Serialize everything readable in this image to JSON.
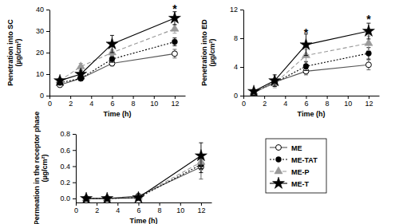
{
  "chart_data": [
    {
      "type": "line",
      "xlabel": "Time (h)",
      "ylabel": "Penetration into SC\n(µg/cm²)",
      "xlim": [
        0,
        13
      ],
      "xticks": [
        0,
        2,
        4,
        6,
        8,
        10,
        12
      ],
      "ylim": [
        0,
        40
      ],
      "yticks": [
        0,
        10,
        20,
        30,
        40
      ],
      "grid": false,
      "x": [
        1,
        3,
        6,
        12
      ],
      "series": [
        {
          "name": "ME",
          "color": "#555555",
          "marker": "circle-open",
          "line_style": "solid",
          "values": [
            5,
            8,
            15,
            19.5
          ],
          "errors": [
            0.8,
            1,
            1.2,
            2
          ]
        },
        {
          "name": "ME-TAT",
          "color": "#000000",
          "marker": "circle",
          "line_style": "dotted",
          "values": [
            6,
            8,
            17,
            25
          ],
          "errors": [
            0.8,
            1,
            1.5,
            1.8
          ]
        },
        {
          "name": "ME-P",
          "color": "#999999",
          "marker": "triangle",
          "line_style": "dashed",
          "values": [
            7,
            13.5,
            20,
            31
          ],
          "errors": [
            1,
            1.5,
            1.5,
            2
          ]
        },
        {
          "name": "ME-T",
          "color": "#000000",
          "marker": "star",
          "line_style": "solid",
          "values": [
            7,
            10,
            24,
            36
          ],
          "errors": [
            1,
            1.5,
            4,
            3
          ]
        }
      ],
      "annotations": [
        {
          "text": "*",
          "x": 12,
          "y": 38.5
        }
      ]
    },
    {
      "type": "line",
      "xlabel": "Time (h)",
      "ylabel": "Penetration into ED\n(µg/cm²)",
      "xlim": [
        0,
        13
      ],
      "xticks": [
        0,
        2,
        4,
        6,
        8,
        10,
        12
      ],
      "ylim": [
        0,
        12
      ],
      "yticks": [
        0,
        4,
        8,
        12
      ],
      "grid": false,
      "x": [
        1,
        3,
        6,
        12
      ],
      "series": [
        {
          "name": "ME",
          "color": "#555555",
          "marker": "circle-open",
          "line_style": "solid",
          "values": [
            0.4,
            1.9,
            3.4,
            4.3
          ],
          "errors": [
            0.2,
            0.5,
            0.5,
            0.7
          ]
        },
        {
          "name": "ME-TAT",
          "color": "#000000",
          "marker": "circle",
          "line_style": "dotted",
          "values": [
            0.5,
            1.8,
            4.1,
            5.9
          ],
          "errors": [
            0.2,
            0.5,
            0.6,
            0.8
          ]
        },
        {
          "name": "ME-P",
          "color": "#999999",
          "marker": "triangle",
          "line_style": "dashed",
          "values": [
            0.5,
            1.7,
            5.6,
            7.3
          ],
          "errors": [
            0.2,
            0.6,
            0.8,
            1
          ]
        },
        {
          "name": "ME-T",
          "color": "#000000",
          "marker": "star",
          "line_style": "solid",
          "values": [
            0.6,
            2.1,
            7.1,
            9.0
          ],
          "errors": [
            0.2,
            0.8,
            1.5,
            1.1
          ]
        }
      ],
      "annotations": [
        {
          "text": "*",
          "x": 6,
          "y": 8.2
        },
        {
          "text": "*",
          "x": 12,
          "y": 10.1
        }
      ]
    },
    {
      "type": "line",
      "xlabel": "Time (h)",
      "ylabel": "Permeation in the receptor phase\n(µg/cm²)",
      "xlim": [
        0,
        13
      ],
      "xticks": [
        0,
        2,
        4,
        6,
        8,
        10,
        12
      ],
      "ylim": [
        -0.05,
        0.8
      ],
      "yticks": [
        {
          "value": 0,
          "label": "0.0"
        },
        0.2,
        0.4,
        0.6,
        0.8
      ],
      "grid": false,
      "x": [
        1,
        3,
        6,
        12
      ],
      "legend": "right",
      "series": [
        {
          "name": "ME",
          "color": "#555555",
          "marker": "circle-open",
          "line_style": "solid",
          "values": [
            0,
            0,
            0.03,
            0.39
          ],
          "errors": [
            0,
            0,
            0.01,
            0.15
          ]
        },
        {
          "name": "ME-TAT",
          "color": "#000000",
          "marker": "circle",
          "line_style": "dotted",
          "values": [
            0,
            0,
            0.01,
            0.42
          ],
          "errors": [
            0,
            0,
            0.01,
            0.1
          ]
        },
        {
          "name": "ME-P",
          "color": "#999999",
          "marker": "triangle",
          "line_style": "dashed",
          "values": [
            0,
            0,
            0.02,
            0.45
          ],
          "errors": [
            0,
            0,
            0.01,
            0.1
          ]
        },
        {
          "name": "ME-T",
          "color": "#000000",
          "marker": "star",
          "line_style": "solid",
          "values": [
            0,
            0,
            0.01,
            0.53
          ],
          "errors": [
            0,
            0,
            0.01,
            0.16
          ]
        }
      ]
    }
  ]
}
